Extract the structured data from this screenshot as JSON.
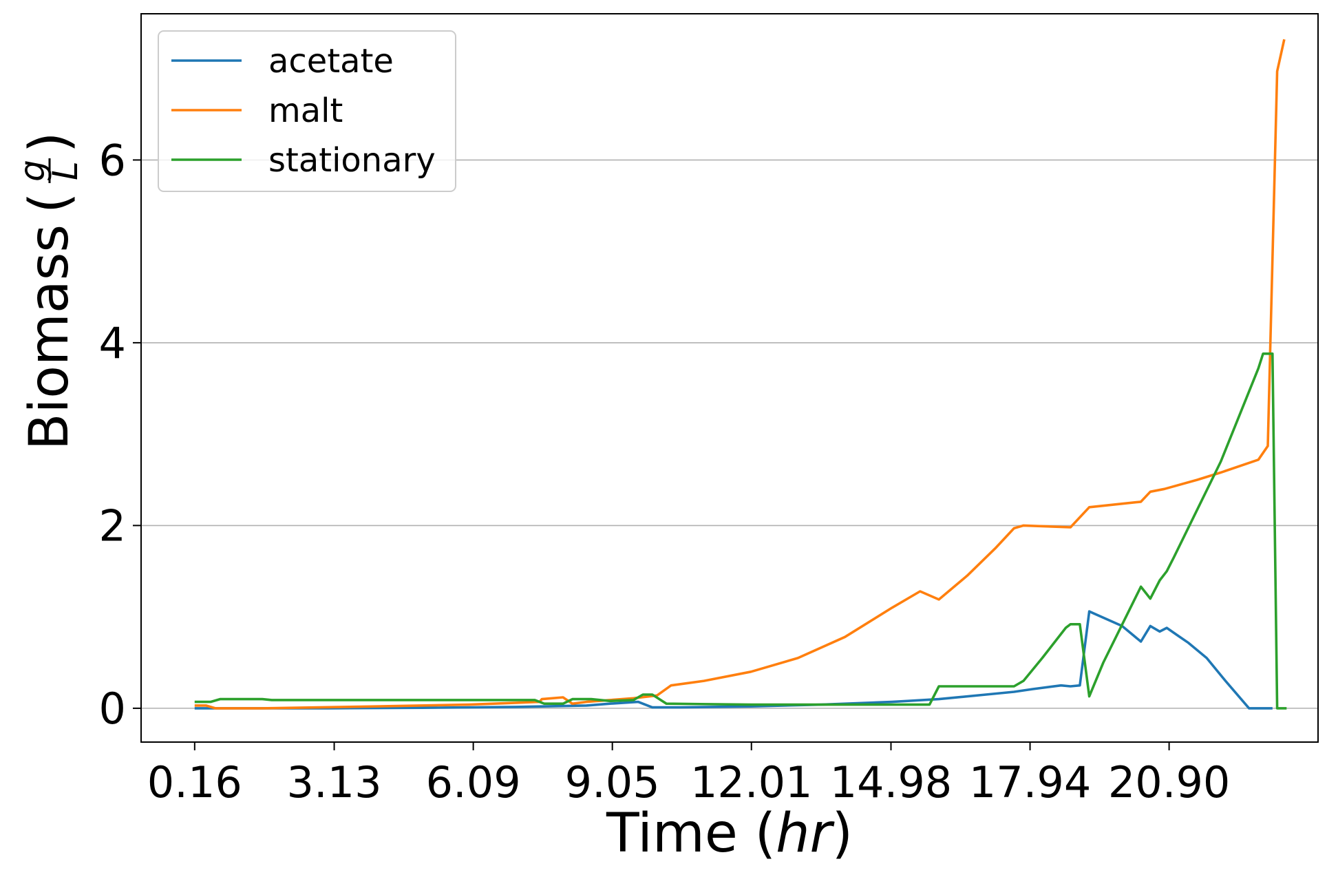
{
  "chart_data": {
    "type": "line",
    "title": "",
    "xlabel": "Time",
    "xlabel_unit": "hr",
    "ylabel": "Biomass",
    "ylabel_unit_numerator": "g",
    "ylabel_unit_denominator": "L",
    "x_ticks": [
      "0.16",
      "3.13",
      "6.09",
      "9.05",
      "12.01",
      "14.98",
      "17.94",
      "20.90"
    ],
    "x_tick_values": [
      0.16,
      3.13,
      6.09,
      9.05,
      12.01,
      14.98,
      17.94,
      20.9
    ],
    "y_ticks": [
      "0",
      "2",
      "4",
      "6"
    ],
    "y_tick_values": [
      0,
      2,
      4,
      6
    ],
    "xlim": [
      -0.98,
      24.07
    ],
    "ylim": [
      -0.37,
      7.6
    ],
    "grid": "horizontal",
    "legend_position": "top-left",
    "series": [
      {
        "name": "acetate",
        "color": "#1f77b4",
        "points": [
          [
            0.16,
            0
          ],
          [
            0.5,
            0
          ],
          [
            1.5,
            0
          ],
          [
            3.0,
            0
          ],
          [
            5.0,
            0.005
          ],
          [
            7.0,
            0.015
          ],
          [
            8.5,
            0.03
          ],
          [
            9.0,
            0.05
          ],
          [
            9.6,
            0.07
          ],
          [
            9.9,
            0.01
          ],
          [
            10.5,
            0.01
          ],
          [
            12.0,
            0.02
          ],
          [
            13.5,
            0.04
          ],
          [
            15.0,
            0.07
          ],
          [
            16.0,
            0.1
          ],
          [
            17.0,
            0.15
          ],
          [
            17.6,
            0.18
          ],
          [
            18.0,
            0.21
          ],
          [
            18.6,
            0.25
          ],
          [
            18.8,
            0.24
          ],
          [
            19.0,
            0.25
          ],
          [
            19.2,
            1.06
          ],
          [
            19.9,
            0.9
          ],
          [
            20.3,
            0.73
          ],
          [
            20.5,
            0.9
          ],
          [
            20.7,
            0.84
          ],
          [
            20.85,
            0.88
          ],
          [
            21.1,
            0.79
          ],
          [
            21.3,
            0.72
          ],
          [
            21.7,
            0.55
          ],
          [
            22.1,
            0.3
          ],
          [
            22.6,
            0.0
          ],
          [
            23.0,
            0.0
          ],
          [
            23.1,
            0.0
          ]
        ]
      },
      {
        "name": "malt",
        "color": "#ff7f0e",
        "points": [
          [
            0.16,
            0.03
          ],
          [
            0.4,
            0.03
          ],
          [
            0.6,
            0.0
          ],
          [
            1.6,
            0.0
          ],
          [
            4.0,
            0.02
          ],
          [
            6.0,
            0.04
          ],
          [
            7.5,
            0.07
          ],
          [
            7.55,
            0.1
          ],
          [
            8.0,
            0.12
          ],
          [
            8.2,
            0.05
          ],
          [
            8.5,
            0.07
          ],
          [
            9.0,
            0.09
          ],
          [
            9.5,
            0.11
          ],
          [
            10.0,
            0.14
          ],
          [
            10.3,
            0.25
          ],
          [
            11.0,
            0.3
          ],
          [
            12.0,
            0.4
          ],
          [
            13.0,
            0.55
          ],
          [
            14.0,
            0.78
          ],
          [
            15.0,
            1.1
          ],
          [
            15.6,
            1.28
          ],
          [
            16.0,
            1.19
          ],
          [
            16.6,
            1.45
          ],
          [
            17.2,
            1.75
          ],
          [
            17.6,
            1.97
          ],
          [
            17.8,
            2.0
          ],
          [
            18.8,
            1.98
          ],
          [
            19.2,
            2.2
          ],
          [
            20.3,
            2.26
          ],
          [
            20.5,
            2.37
          ],
          [
            20.8,
            2.4
          ],
          [
            21.5,
            2.5
          ],
          [
            22.0,
            2.58
          ],
          [
            22.8,
            2.72
          ],
          [
            23.0,
            2.87
          ],
          [
            23.2,
            6.97
          ],
          [
            23.35,
            7.32
          ]
        ]
      },
      {
        "name": "stationary",
        "color": "#2ca02c",
        "points": [
          [
            0.16,
            0.07
          ],
          [
            0.5,
            0.07
          ],
          [
            0.7,
            0.1
          ],
          [
            1.6,
            0.1
          ],
          [
            1.8,
            0.09
          ],
          [
            4.0,
            0.09
          ],
          [
            6.0,
            0.09
          ],
          [
            7.4,
            0.09
          ],
          [
            7.6,
            0.05
          ],
          [
            8.0,
            0.05
          ],
          [
            8.2,
            0.1
          ],
          [
            8.6,
            0.1
          ],
          [
            9.0,
            0.08
          ],
          [
            9.5,
            0.09
          ],
          [
            9.7,
            0.15
          ],
          [
            9.9,
            0.15
          ],
          [
            10.2,
            0.05
          ],
          [
            12.0,
            0.04
          ],
          [
            15.8,
            0.04
          ],
          [
            16.0,
            0.24
          ],
          [
            17.6,
            0.24
          ],
          [
            17.8,
            0.3
          ],
          [
            18.2,
            0.55
          ],
          [
            18.7,
            0.88
          ],
          [
            18.8,
            0.92
          ],
          [
            19.0,
            0.92
          ],
          [
            19.2,
            0.13
          ],
          [
            19.5,
            0.5
          ],
          [
            20.3,
            1.33
          ],
          [
            20.5,
            1.2
          ],
          [
            20.7,
            1.4
          ],
          [
            20.85,
            1.5
          ],
          [
            21.0,
            1.65
          ],
          [
            22.0,
            2.7
          ],
          [
            22.8,
            3.72
          ],
          [
            22.9,
            3.88
          ],
          [
            23.1,
            3.88
          ],
          [
            23.2,
            0.0
          ],
          [
            23.4,
            0.0
          ]
        ]
      }
    ]
  }
}
